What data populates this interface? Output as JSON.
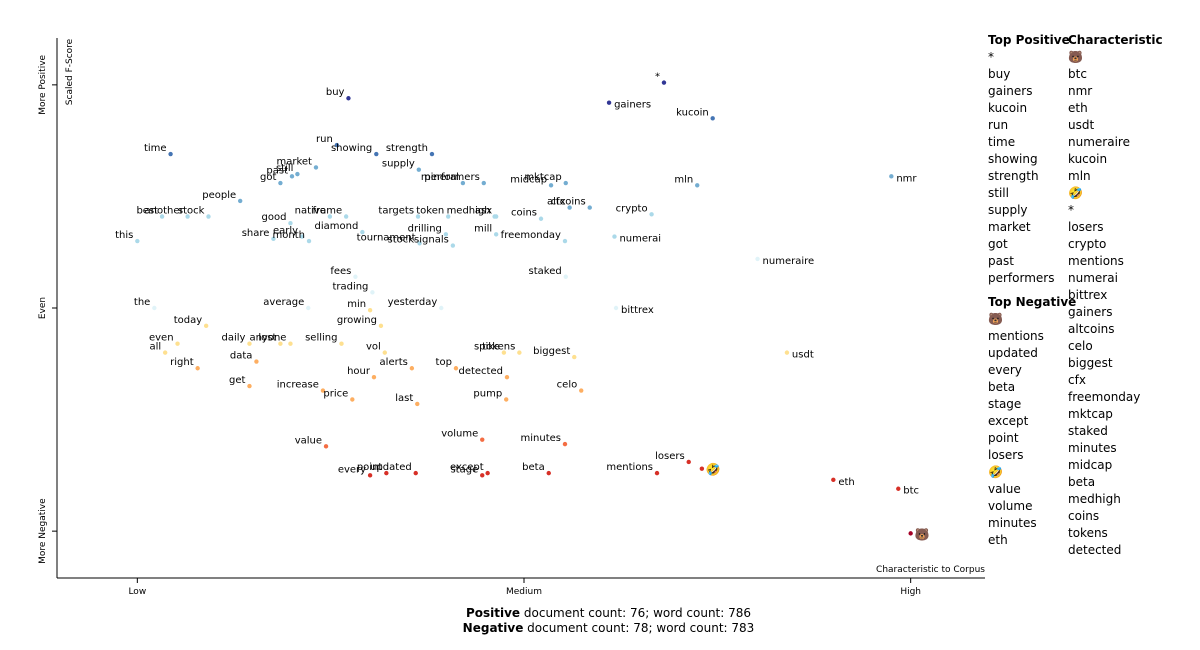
{
  "chart_data": {
    "type": "scatter",
    "y_label": "Scaled F-Score",
    "x_label": "Characteristic to Corpus",
    "xlim": [
      -0.1,
      1.1
    ],
    "xticks": [
      {
        "value": 0,
        "label": "Low"
      },
      {
        "value": 0.5,
        "label": "Medium"
      },
      {
        "value": 1,
        "label": "High"
      }
    ],
    "ylim": [
      -1.21,
      1.21
    ],
    "yticks": [
      {
        "value": -1,
        "label": "More Negative"
      },
      {
        "value": 0,
        "label": "Even"
      },
      {
        "value": 1,
        "label": "More Positive"
      }
    ],
    "colormap": [
      "#a50026",
      "#d73027",
      "#f46d43",
      "#fdae61",
      "#fee090",
      "#e0f3f8",
      "#abd9e9",
      "#74add1",
      "#4575b4",
      "#313695"
    ],
    "terms": [
      "*",
      "buy",
      "gainers",
      "kucoin",
      "run",
      "strength",
      "time",
      "showing",
      "market",
      "still",
      "supply",
      "past",
      "got",
      "mineral",
      "performers",
      "mktcap",
      "midcap",
      "mln",
      "nmr",
      "people",
      "medhigh",
      "stock",
      "native",
      "token",
      "cfx",
      "crypto",
      "best",
      "frame",
      "targets",
      "asx",
      "altcoins",
      "good",
      "diamond",
      "drilling",
      "mill",
      "coins",
      "another",
      "this",
      "share",
      "early",
      "month",
      "tournament",
      "freemonday",
      "numerai",
      "stocksignals",
      "numeraire",
      "fees",
      "staked",
      "trading",
      "the",
      "average",
      "min",
      "yesterday",
      "bittrex",
      "today",
      "growing",
      "even",
      "daily",
      "lost",
      "selling",
      "all",
      "anyone",
      "vol",
      "spike",
      "tokens",
      "biggest",
      "usdt",
      "data",
      "right",
      "alerts",
      "hour",
      "top",
      "get",
      "detected",
      "increase",
      "celo",
      "price",
      "pump",
      "last",
      "volume",
      "value",
      "minutes",
      "losers",
      "point",
      "every",
      "updated",
      "except",
      "stage",
      "beta",
      "mentions",
      "eth",
      "btc",
      "🐻",
      "🤣"
    ],
    "x": [
      0.681,
      0.273,
      0.61,
      0.744,
      0.258,
      0.381,
      0.043,
      0.309,
      0.231,
      0.207,
      0.364,
      0.2,
      0.185,
      0.421,
      0.448,
      0.554,
      0.535,
      0.724,
      0.975,
      0.133,
      0.462,
      0.092,
      0.249,
      0.402,
      0.559,
      0.665,
      0.032,
      0.27,
      0.363,
      0.464,
      0.585,
      0.198,
      0.291,
      0.399,
      0.464,
      0.522,
      0.065,
      0.0,
      0.176,
      0.213,
      0.222,
      0.365,
      0.553,
      0.617,
      0.408,
      0.802,
      0.282,
      0.554,
      0.304,
      0.022,
      0.221,
      0.301,
      0.393,
      0.619,
      0.089,
      0.315,
      0.052,
      0.145,
      0.185,
      0.264,
      0.036,
      0.198,
      0.32,
      0.474,
      0.494,
      0.565,
      0.84,
      0.154,
      0.078,
      0.355,
      0.306,
      0.412,
      0.145,
      0.478,
      0.24,
      0.574,
      0.278,
      0.477,
      0.362,
      0.446,
      0.244,
      0.553,
      0.713,
      0.322,
      0.301,
      0.36,
      0.453,
      0.446,
      0.532,
      0.672,
      0.9,
      0.984,
      1.0,
      0.73
    ],
    "values": [
      1.01,
      0.94,
      0.92,
      0.85,
      0.73,
      0.69,
      0.69,
      0.69,
      0.63,
      0.6,
      0.62,
      0.59,
      0.56,
      0.56,
      0.56,
      0.56,
      0.55,
      0.55,
      0.59,
      0.48,
      0.41,
      0.41,
      0.41,
      0.41,
      0.45,
      0.42,
      0.41,
      0.41,
      0.41,
      0.41,
      0.45,
      0.38,
      0.34,
      0.33,
      0.33,
      0.4,
      0.41,
      0.3,
      0.31,
      0.32,
      0.3,
      0.29,
      0.3,
      0.32,
      0.28,
      0.22,
      0.14,
      0.14,
      0.07,
      0.0,
      0.0,
      -0.01,
      0.0,
      0.0,
      -0.08,
      -0.08,
      -0.16,
      -0.16,
      -0.16,
      -0.16,
      -0.2,
      -0.16,
      -0.2,
      -0.2,
      -0.2,
      -0.22,
      -0.2,
      -0.24,
      -0.27,
      -0.27,
      -0.31,
      -0.27,
      -0.35,
      -0.31,
      -0.37,
      -0.37,
      -0.41,
      -0.41,
      -0.43,
      -0.59,
      -0.62,
      -0.61,
      -0.69,
      -0.74,
      -0.75,
      -0.74,
      -0.74,
      -0.75,
      -0.74,
      -0.74,
      -0.77,
      -0.81,
      -1.01,
      -0.72
    ]
  },
  "panel": {
    "top_positive": {
      "title": "Top Positive",
      "items": [
        "*",
        "buy",
        "gainers",
        "kucoin",
        "run",
        "time",
        "showing",
        "strength",
        "still",
        "supply",
        "market",
        "got",
        "past",
        "performers"
      ]
    },
    "top_negative": {
      "title": "Top Negative",
      "items": [
        "🐻",
        "mentions",
        "updated",
        "every",
        "beta",
        "stage",
        "except",
        "point",
        "losers",
        "🤣",
        "value",
        "volume",
        "minutes",
        "eth"
      ]
    },
    "characteristic": {
      "title": "Characteristic",
      "items": [
        "🐻",
        "btc",
        "nmr",
        "eth",
        "usdt",
        "numeraire",
        "kucoin",
        "mln",
        "🤣",
        "*",
        "losers",
        "crypto",
        "mentions",
        "numerai",
        "bittrex",
        "gainers",
        "altcoins",
        "celo",
        "biggest",
        "cfx",
        "freemonday",
        "mktcap",
        "staked",
        "minutes",
        "midcap",
        "beta",
        "medhigh",
        "coins",
        "tokens",
        "detected"
      ]
    }
  },
  "footer": {
    "positive_bold": "Positive",
    "positive_text": " document count: 76; word count: 786",
    "negative_bold": "Negative",
    "negative_text": " document count: 78; word count: 783"
  }
}
